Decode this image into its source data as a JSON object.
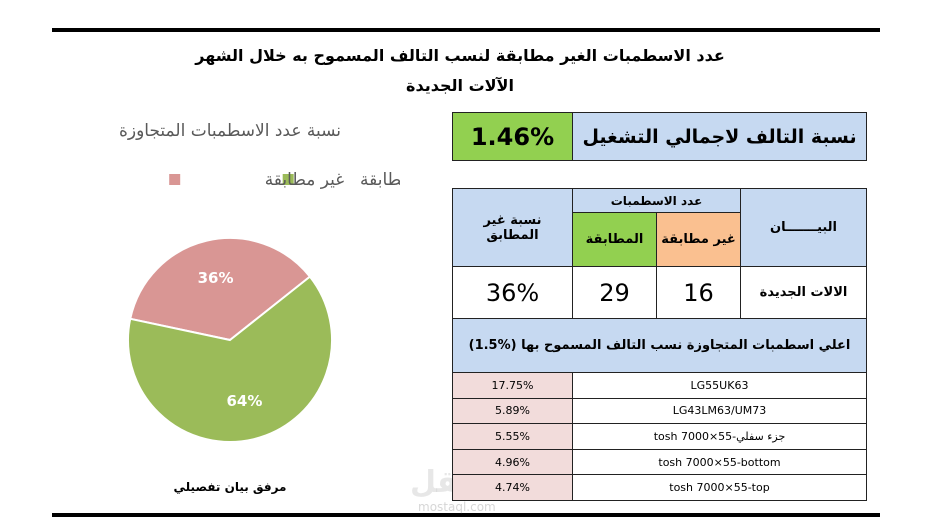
{
  "header": {
    "title": "عدد الاسطمبات الغير مطابقة لنسب التالف المسموح به خلال الشهر",
    "subtitle": "الآلات الجديدة"
  },
  "chart_data": {
    "type": "pie",
    "title": "نسبة عدد الاسطمبات المتجاوزة",
    "categories": [
      "غير مطابقة",
      "المطابقة"
    ],
    "values": [
      36,
      64
    ],
    "value_labels": [
      "36%",
      "64%"
    ],
    "colors": [
      "#d99694",
      "#9bbb59"
    ]
  },
  "summary": {
    "label": "نسبة التالف لاجمالي التشغيل",
    "value": "1.46%"
  },
  "table": {
    "header": {
      "item": "البيـــــــان",
      "count": "عدد الاسطمبات",
      "nonconforming": "غير مطابقة",
      "conforming": "المطابقة",
      "ratio": "نسبة غير المطابق"
    },
    "row": {
      "item": "الالات الجديدة",
      "nonconforming": "16",
      "conforming": "29",
      "ratio": "36%"
    }
  },
  "top_list": {
    "title": "اعلي اسطمبات المتجاوزة نسب التالف المسموح بها (%1.5)",
    "rows": [
      [
        "LG55UK63",
        "17.75%"
      ],
      [
        "LG43LM63/UM73",
        "5.89%"
      ],
      [
        "tosh 7000×55-جزء سفلي",
        "5.55%"
      ],
      [
        "tosh 7000×55-bottom",
        "4.96%"
      ],
      [
        "tosh 7000×55-top",
        "4.74%"
      ]
    ]
  },
  "footnote": "مرفق بيان تفصيلي",
  "watermark": [
    "مستقل",
    "mostaql.com"
  ]
}
